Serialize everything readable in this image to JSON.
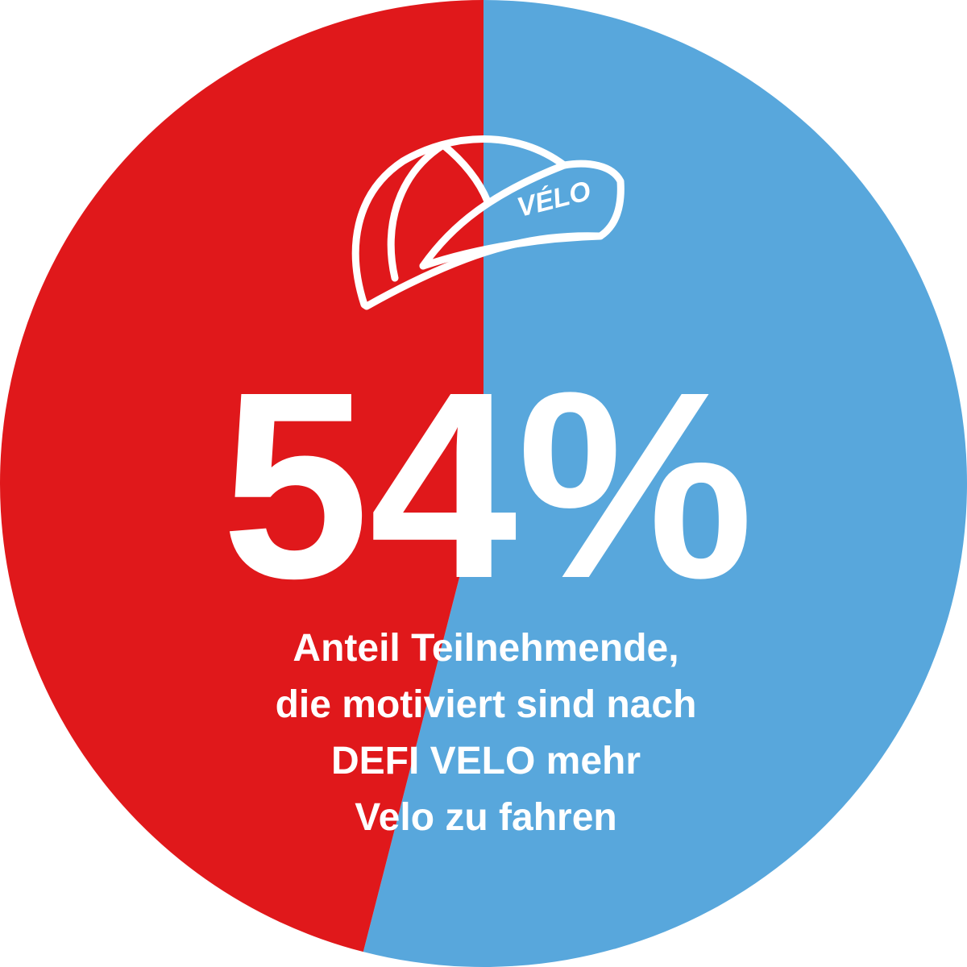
{
  "chart_data": {
    "type": "pie",
    "values": [
      54,
      46
    ],
    "value_labels": [
      "54%",
      null
    ],
    "colors": [
      "#58a7dc",
      "#e0181b"
    ],
    "annotation": [
      "Anteil Teilnehmende,",
      "die motiviert sind nach",
      "DEFI VELO mehr",
      "Velo zu fahren"
    ],
    "icon_label": "VÉLO"
  }
}
